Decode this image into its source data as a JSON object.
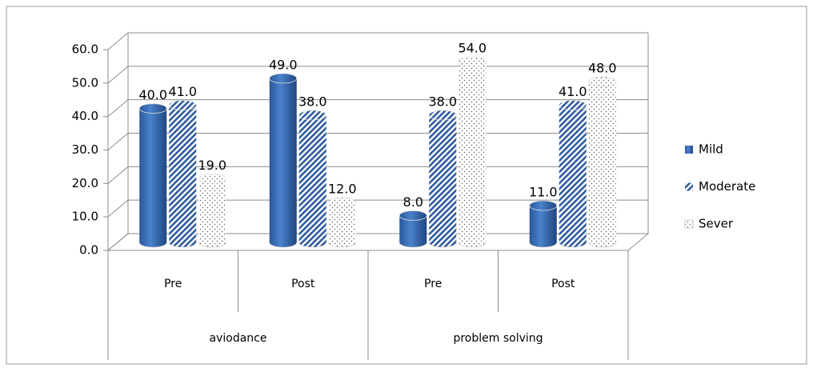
{
  "chart_data": {
    "type": "bar3d",
    "categories": [
      "Pre",
      "Post",
      "Pre",
      "Post"
    ],
    "groups": [
      "aviodance",
      "problem solving"
    ],
    "series": [
      {
        "name": "Mild",
        "color": "#3a6fb7",
        "pattern": "solid",
        "values": [
          40,
          49,
          8,
          11
        ],
        "value_labels": [
          "40.0",
          "49.0",
          "8.0",
          "11.0"
        ]
      },
      {
        "name": "Moderate",
        "color": "#2f5c9e",
        "pattern": "hatch",
        "values": [
          41,
          38,
          38,
          41
        ],
        "value_labels": [
          "41.0",
          "38.0",
          "38.0",
          "41.0"
        ]
      },
      {
        "name": "Sever",
        "color": "#ffffff",
        "pattern": "dots",
        "values": [
          19,
          12,
          54,
          48
        ],
        "value_labels": [
          "19.0",
          "12.0",
          "54.0",
          "48.0"
        ]
      }
    ],
    "ylim": [
      0,
      60
    ],
    "yticks": [
      {
        "value": 0,
        "label": "0.0"
      },
      {
        "value": 10,
        "label": "10.0"
      },
      {
        "value": 20,
        "label": "20.0"
      },
      {
        "value": 30,
        "label": "30.0"
      },
      {
        "value": 40,
        "label": "40.0"
      },
      {
        "value": 50,
        "label": "50.0"
      },
      {
        "value": 60,
        "label": "60.0"
      }
    ],
    "grid": true,
    "legend": "right"
  }
}
